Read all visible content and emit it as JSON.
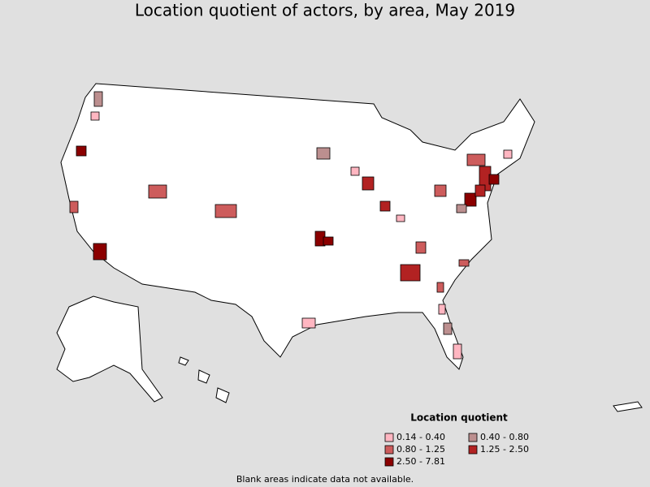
{
  "title": "Location quotient of actors, by area, May 2019",
  "legend": {
    "title": "Location quotient",
    "items": [
      {
        "label": "0.14 - 0.40",
        "color": "#ffb6c1"
      },
      {
        "label": "0.40 - 0.80",
        "color": "#bc8f8f"
      },
      {
        "label": "0.80 - 1.25",
        "color": "#cd5c5c"
      },
      {
        "label": "1.25 - 2.50",
        "color": "#b22222"
      },
      {
        "label": "2.50 - 7.81",
        "color": "#8b0000"
      }
    ]
  },
  "footnote": "Blank areas indicate data not available."
}
